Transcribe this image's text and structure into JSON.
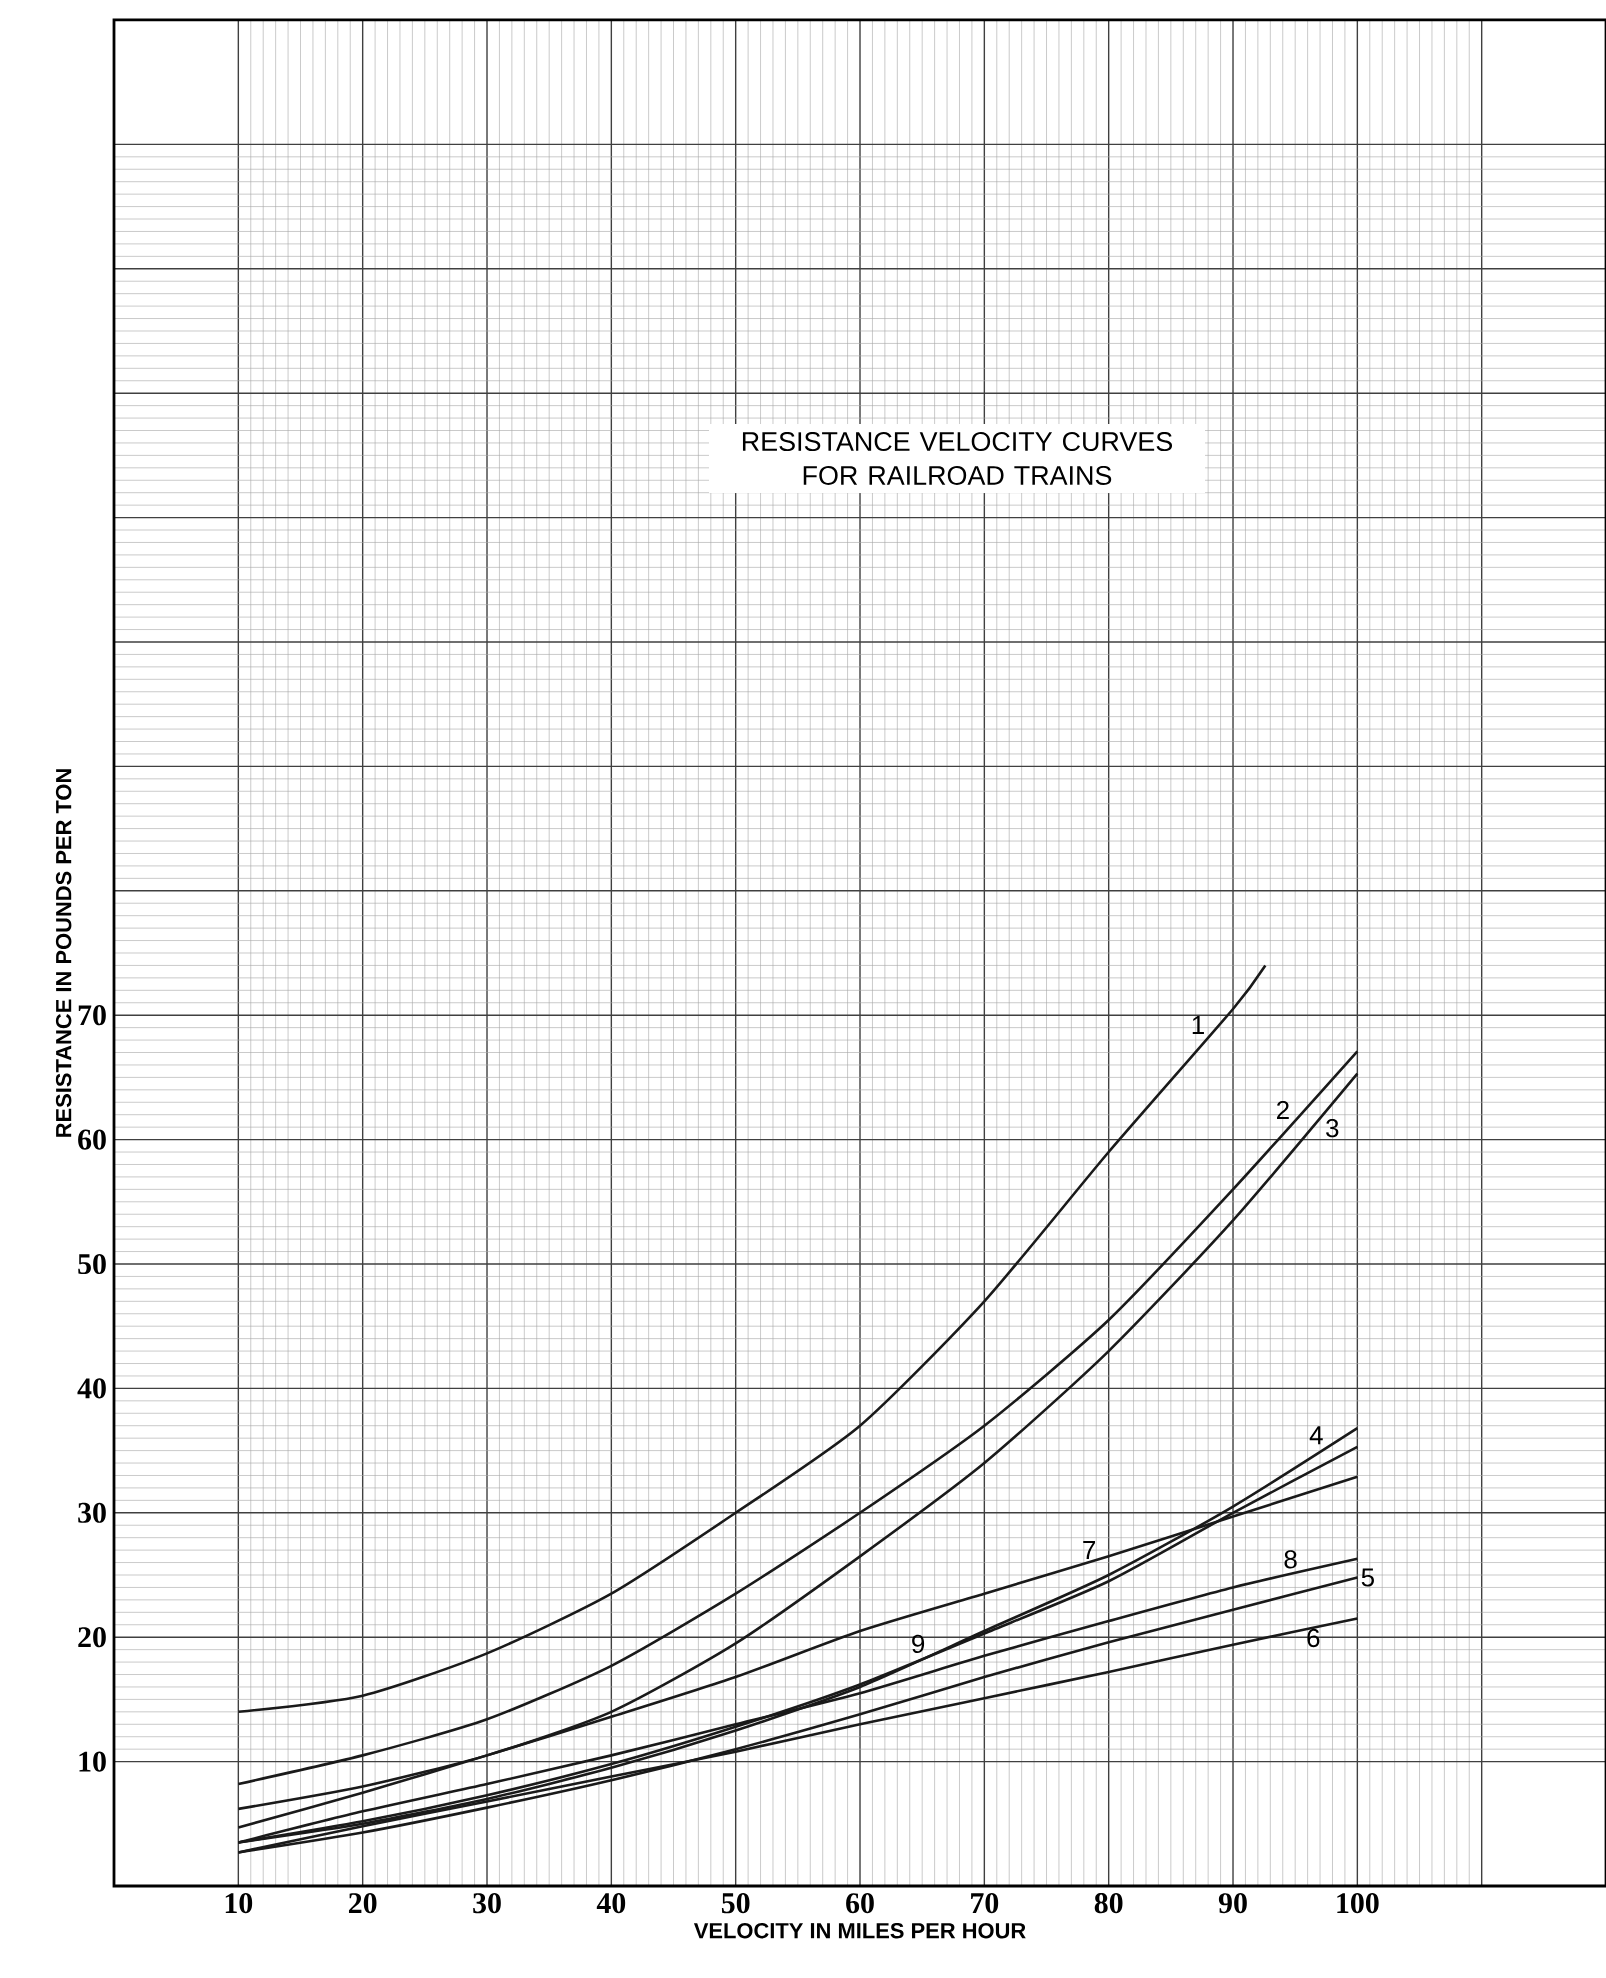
{
  "chart_data": {
    "type": "line",
    "title": "RESISTANCE VELOCITY CURVES FOR RAILROAD TRAINS",
    "xlabel": "VELOCITY IN MILES PER HOUR",
    "ylabel": "RESISTANCE IN POUNDS PER TON",
    "x": [
      10,
      20,
      30,
      40,
      50,
      60,
      70,
      80,
      90,
      100
    ],
    "series": [
      {
        "name": "1",
        "color": "#1a1a1a",
        "x": [
          10,
          20,
          30,
          40,
          50,
          60,
          70,
          80,
          90,
          92.6
        ],
        "values": [
          14,
          15.3,
          18.7,
          23.5,
          30,
          37,
          47,
          59,
          70.5,
          74
        ]
      },
      {
        "name": "2",
        "color": "#1a1a1a",
        "values": [
          8.2,
          10.5,
          13.4,
          17.7,
          23.5,
          30,
          37,
          45.5,
          56,
          67.1
        ]
      },
      {
        "name": "3",
        "color": "#1a1a1a",
        "values": [
          6.2,
          8,
          10.5,
          14,
          19.5,
          26.5,
          34,
          43,
          53.5,
          65.3
        ]
      },
      {
        "name": "4",
        "color": "#1a1a1a",
        "values": [
          3.5,
          5,
          7,
          9.5,
          12.5,
          16,
          20.5,
          25,
          30.5,
          36.8
        ]
      },
      {
        "name": "5",
        "color": "#1a1a1a",
        "values": [
          2.7,
          4.3,
          6.3,
          8.5,
          11,
          13.8,
          16.8,
          19.6,
          22.2,
          24.8
        ]
      },
      {
        "name": "6",
        "color": "#1a1a1a",
        "values": [
          2.7,
          4.8,
          6.8,
          8.8,
          10.8,
          13,
          15.1,
          17.2,
          19.4,
          21.5
        ]
      },
      {
        "name": "7",
        "color": "#1a1a1a",
        "values": [
          4.7,
          7.5,
          10.5,
          13.6,
          16.8,
          20.5,
          23.5,
          26.5,
          29.7,
          32.9
        ]
      },
      {
        "name": "8",
        "color": "#1a1a1a",
        "values": [
          3.5,
          6,
          8.2,
          10.5,
          13,
          15.5,
          18.5,
          21.3,
          24,
          26.3
        ]
      },
      {
        "name": "9",
        "color": "#1a1a1a",
        "values": [
          3.5,
          5.2,
          7.3,
          9.8,
          12.8,
          16.2,
          20.3,
          24.5,
          30,
          35.3
        ]
      }
    ],
    "xlim": [
      0,
      120
    ],
    "ylim": [
      0,
      150
    ],
    "xticks": [
      10,
      20,
      30,
      40,
      50,
      60,
      70,
      80,
      90,
      100,
      {
        "value": 110,
        "label": null
      }
    ],
    "yticks": [
      10,
      20,
      30,
      40,
      50,
      60,
      70,
      {
        "value": 80,
        "label": null
      },
      {
        "value": 90,
        "label": null
      },
      {
        "value": 100,
        "label": null
      },
      {
        "value": 110,
        "label": null
      },
      {
        "value": 120,
        "label": null
      },
      {
        "value": 130,
        "label": null
      },
      {
        "value": 140,
        "label": null
      }
    ],
    "grid": true
  }
}
